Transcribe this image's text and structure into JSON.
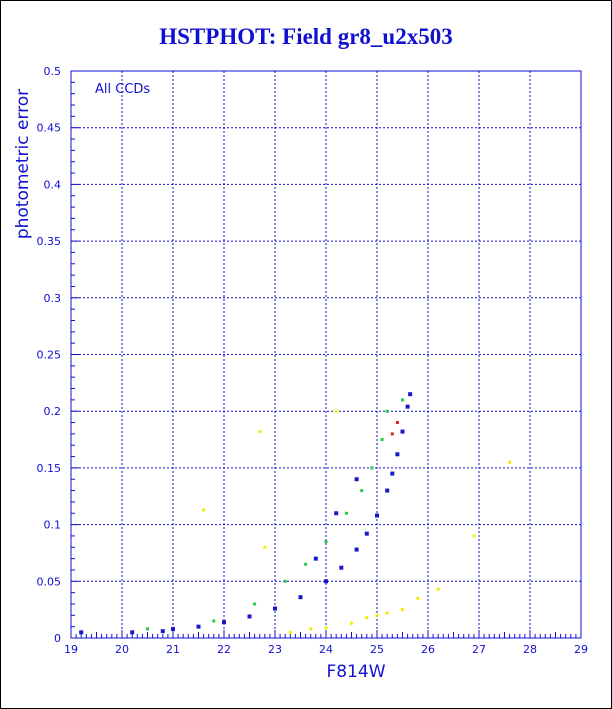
{
  "chart_data": {
    "type": "scatter",
    "title": "HSTPHOT: Field gr8_u2x503",
    "xlabel": "F814W",
    "ylabel": "photometric error",
    "annotation": "All CCDs",
    "xlim": [
      19,
      29
    ],
    "ylim": [
      0,
      0.5
    ],
    "x_ticks": [
      "19",
      "20",
      "21",
      "22",
      "23",
      "24",
      "25",
      "26",
      "27",
      "28",
      "29"
    ],
    "y_ticks": [
      "0",
      "0.05",
      "0.1",
      "0.15",
      "0.2",
      "0.25",
      "0.3",
      "0.35",
      "0.4",
      "0.45",
      "0.5"
    ],
    "grid": true,
    "colors": {
      "axes": "#1010d0",
      "title": "#1010d0",
      "main_sequence": "#1818c8",
      "scatter_a": "#22cc44",
      "scatter_b": "#2ad4d4",
      "faint_branch": "#f0f000",
      "highlight": "#e02020"
    },
    "series": [
      {
        "color": "blue",
        "points": [
          [
            19.2,
            0.005
          ],
          [
            20.2,
            0.005
          ],
          [
            20.8,
            0.006
          ],
          [
            21.0,
            0.008
          ],
          [
            21.5,
            0.01
          ],
          [
            22.0,
            0.014
          ],
          [
            22.5,
            0.019
          ],
          [
            23.0,
            0.026
          ],
          [
            23.5,
            0.036
          ],
          [
            24.0,
            0.05
          ],
          [
            24.3,
            0.062
          ],
          [
            24.6,
            0.078
          ],
          [
            24.8,
            0.092
          ],
          [
            25.0,
            0.108
          ],
          [
            25.2,
            0.13
          ],
          [
            25.3,
            0.145
          ],
          [
            25.4,
            0.162
          ],
          [
            25.5,
            0.182
          ],
          [
            25.6,
            0.204
          ],
          [
            25.65,
            0.215
          ],
          [
            23.8,
            0.07
          ],
          [
            24.2,
            0.11
          ],
          [
            24.6,
            0.14
          ]
        ]
      },
      {
        "color": "green",
        "points": [
          [
            20.5,
            0.008
          ],
          [
            21.8,
            0.015
          ],
          [
            22.6,
            0.03
          ],
          [
            23.2,
            0.05
          ],
          [
            23.6,
            0.065
          ],
          [
            24.0,
            0.085
          ],
          [
            24.4,
            0.11
          ],
          [
            24.7,
            0.13
          ],
          [
            24.9,
            0.15
          ],
          [
            25.1,
            0.175
          ],
          [
            25.2,
            0.2
          ],
          [
            25.5,
            0.21
          ]
        ]
      },
      {
        "color": "yellow",
        "points": [
          [
            23.3,
            0.005
          ],
          [
            23.7,
            0.008
          ],
          [
            24.0,
            0.009
          ],
          [
            24.5,
            0.013
          ],
          [
            24.8,
            0.018
          ],
          [
            25.0,
            0.02
          ],
          [
            25.2,
            0.022
          ],
          [
            25.5,
            0.025
          ],
          [
            25.8,
            0.035
          ],
          [
            26.2,
            0.043
          ],
          [
            24.2,
            0.2
          ],
          [
            21.6,
            0.113
          ],
          [
            22.7,
            0.182
          ],
          [
            27.6,
            0.155
          ],
          [
            26.9,
            0.09
          ],
          [
            22.8,
            0.08
          ]
        ]
      },
      {
        "color": "red",
        "points": [
          [
            25.3,
            0.18
          ],
          [
            25.4,
            0.19
          ]
        ]
      }
    ]
  }
}
